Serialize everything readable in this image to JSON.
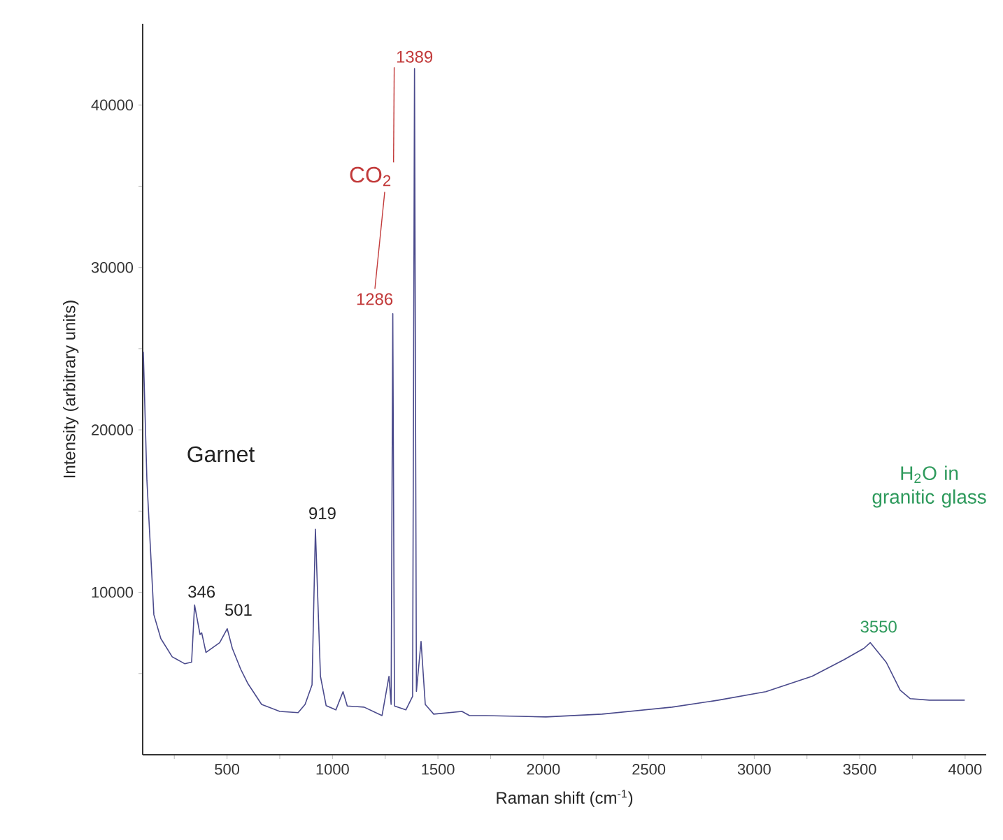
{
  "chart_data": {
    "type": "line",
    "xlabel": "Raman shift (cm$^{-1}$)",
    "ylabel": "Intensity (arbitrary units)",
    "xlim": [
      100,
      4100
    ],
    "ylim": [
      0,
      45000
    ],
    "xticks": [
      {
        "value": 250,
        "label": null
      },
      500,
      {
        "value": 750,
        "label": null
      },
      1000,
      {
        "value": 1250,
        "label": null
      },
      1500,
      {
        "value": 1750,
        "label": null
      },
      2000,
      {
        "value": 2250,
        "label": null
      },
      2500,
      {
        "value": 2750,
        "label": null
      },
      3000,
      {
        "value": 3250,
        "label": null
      },
      3500,
      {
        "value": 3750,
        "label": null
      },
      4000
    ],
    "yticks": [
      {
        "value": 5000,
        "label": null
      },
      10000,
      {
        "value": 15000,
        "label": null
      },
      20000,
      {
        "value": 25000,
        "label": null
      },
      30000,
      {
        "value": 35000,
        "label": null
      },
      40000
    ],
    "grid": false,
    "series": [
      {
        "color": "#4a4a8c",
        "x": [
          103,
          120,
          153,
          186,
          240,
          300,
          332,
          346,
          372,
          380,
          400,
          465,
          501,
          525,
          565,
          598,
          664,
          750,
          837,
          870,
          903,
          919,
          943,
          970,
          1016,
          1050,
          1070,
          1150,
          1235,
          1268,
          1278,
          1286,
          1294,
          1348,
          1380,
          1389,
          1398,
          1420,
          1440,
          1480,
          1614,
          1650,
          1727,
          2012,
          2278,
          2610,
          2830,
          3055,
          3274,
          3427,
          3520,
          3550,
          3626,
          3692,
          3740,
          3830,
          3998
        ],
        "values": [
          24800,
          16900,
          8620,
          7150,
          6030,
          5600,
          5700,
          9220,
          7400,
          7500,
          6300,
          6900,
          7760,
          6550,
          5260,
          4400,
          3100,
          2670,
          2590,
          3100,
          4300,
          13880,
          4830,
          3020,
          2760,
          3880,
          3000,
          2930,
          2410,
          4830,
          3100,
          27150,
          3000,
          2760,
          3600,
          42240,
          3900,
          6980,
          3100,
          2500,
          2670,
          2410,
          2410,
          2330,
          2500,
          2930,
          3360,
          3880,
          4830,
          5860,
          6550,
          6900,
          5690,
          3970,
          3450,
          3360,
          3360
        ]
      }
    ],
    "annotations": [
      {
        "text": "1389",
        "x": 1389,
        "y": 42240
      },
      {
        "text": "1286",
        "x": 1286,
        "y": 27150
      },
      "CO$_{2}$",
      "Garnet",
      {
        "text": "346",
        "x": 346,
        "y": 9220
      },
      {
        "text": "501",
        "x": 501,
        "y": 7760
      },
      {
        "text": "919",
        "x": 919,
        "y": 13880
      },
      "H$_{2}$O in granitic glass",
      {
        "text": "3550",
        "x": 3550,
        "y": 6900
      }
    ]
  }
}
